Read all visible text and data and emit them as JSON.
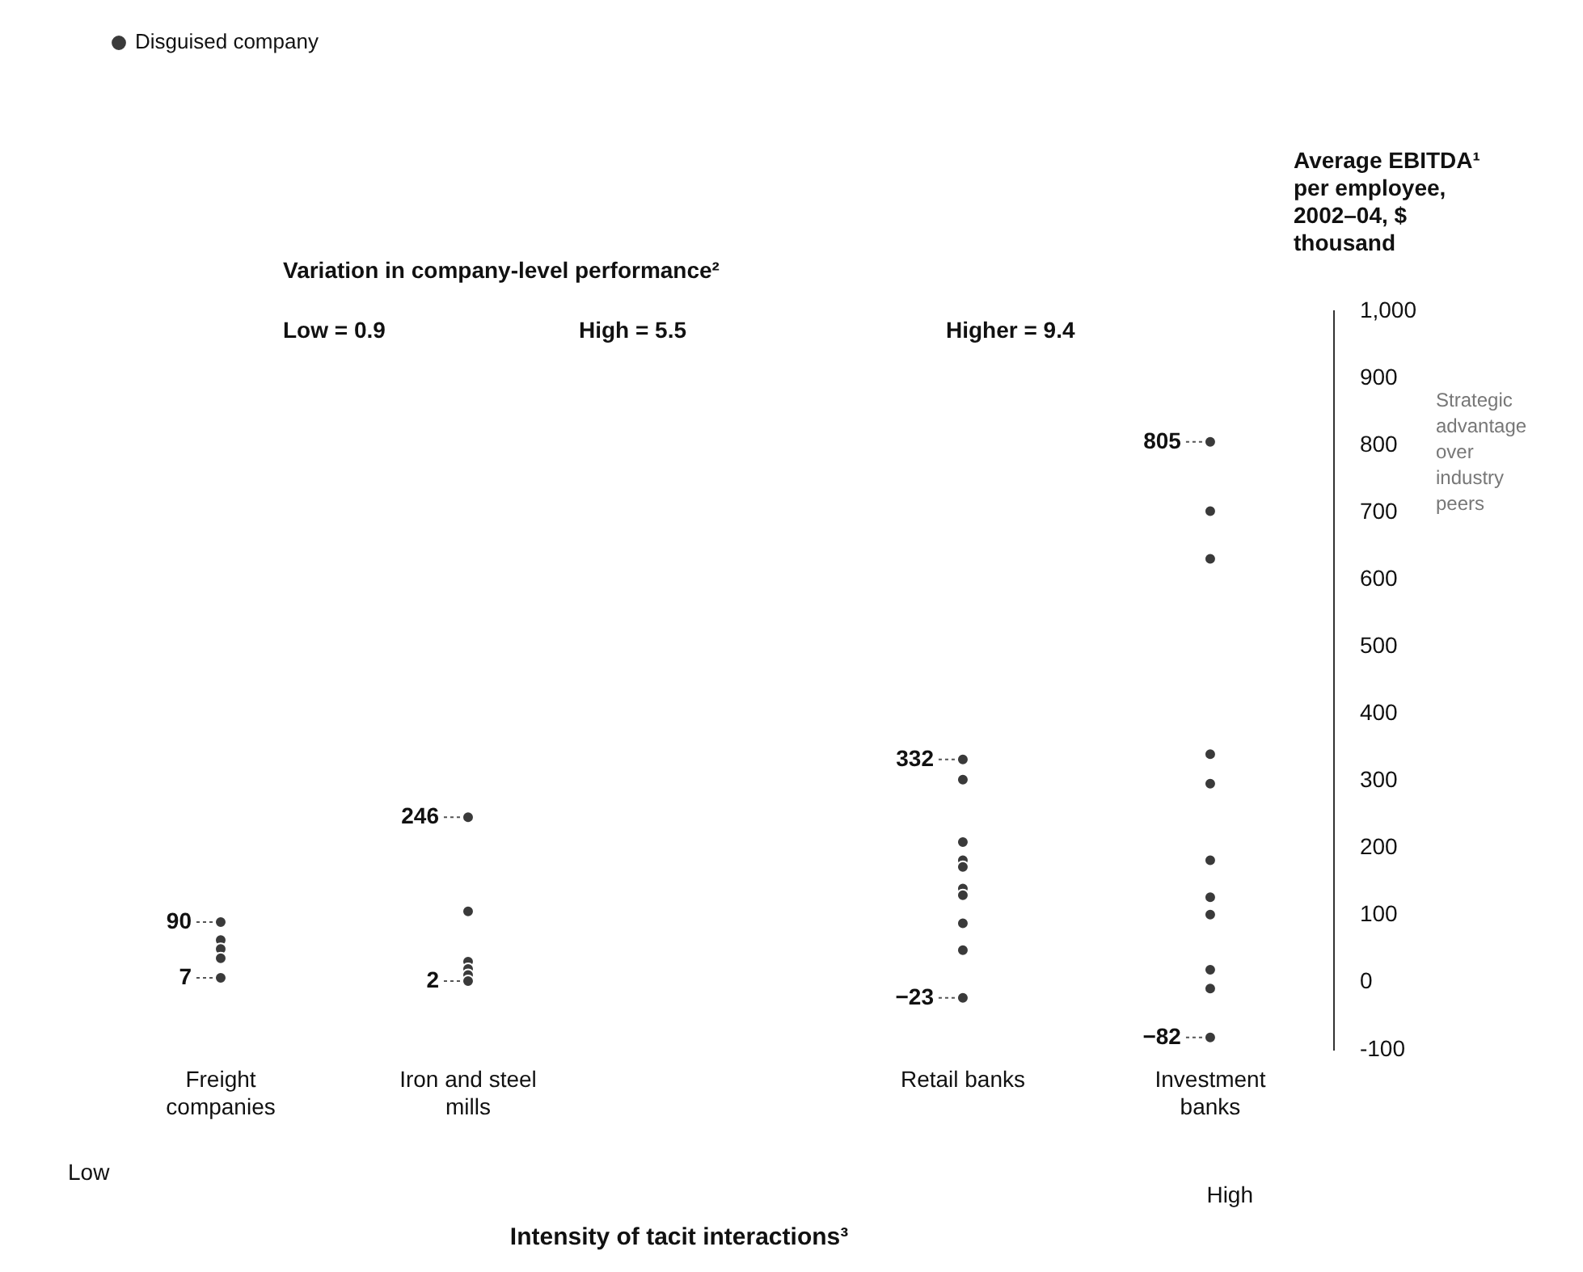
{
  "chart_data": {
    "type": "scatter",
    "ylabel": "Average EBITDA¹ per employee, 2002–04, $ thousand",
    "xlabel": "Intensity of tacit interactions³",
    "categories": [
      "Freight companies",
      "Iron and steel mills",
      null,
      "Retail banks",
      "Investment banks"
    ],
    "series": [
      {
        "name": "Disguised company",
        "color": "#3a3a3a",
        "x": [
          "Freight companies",
          "Freight companies",
          "Freight companies",
          "Freight companies",
          "Freight companies",
          "Iron and steel mills",
          "Iron and steel mills",
          "Iron and steel mills",
          "Iron and steel mills",
          "Iron and steel mills",
          "Iron and steel mills",
          "Retail banks",
          "Retail banks",
          "Retail banks",
          "Retail banks",
          "Retail banks",
          "Retail banks",
          "Retail banks",
          "Retail banks",
          "Retail banks",
          "Retail banks",
          "Investment banks",
          "Investment banks",
          "Investment banks",
          "Investment banks",
          "Investment banks",
          "Investment banks",
          "Investment banks",
          "Investment banks",
          "Investment banks",
          "Investment banks",
          "Investment banks"
        ],
        "values": [
          90,
          63,
          50,
          36,
          7,
          246,
          106,
          31,
          20,
          11,
          2,
          332,
          302,
          209,
          182,
          172,
          140,
          130,
          88,
          48,
          -23,
          805,
          702,
          631,
          340,
          296,
          182,
          127,
          101,
          19,
          -9,
          -82
        ],
        "value_labels": [
          "90",
          null,
          null,
          null,
          "7",
          "246",
          null,
          null,
          null,
          null,
          "2",
          "332",
          null,
          null,
          null,
          null,
          null,
          null,
          null,
          null,
          "−23",
          "805",
          null,
          null,
          null,
          null,
          null,
          null,
          null,
          null,
          null,
          "−82"
        ]
      }
    ],
    "ylim": [
      -100,
      1000
    ],
    "yticks": [
      -100,
      0,
      100,
      200,
      300,
      400,
      500,
      600,
      700,
      800,
      900,
      {
        "value": 1000,
        "label": "1,000"
      }
    ],
    "grid": false,
    "legend": "top left",
    "marker": "circle",
    "annotations": [
      "Variation in company-level performance²",
      "Low = 0.9",
      "High = 5.5",
      "Higher = 9.4",
      "Strategic advantage over industry peers",
      "Low",
      "High"
    ]
  }
}
